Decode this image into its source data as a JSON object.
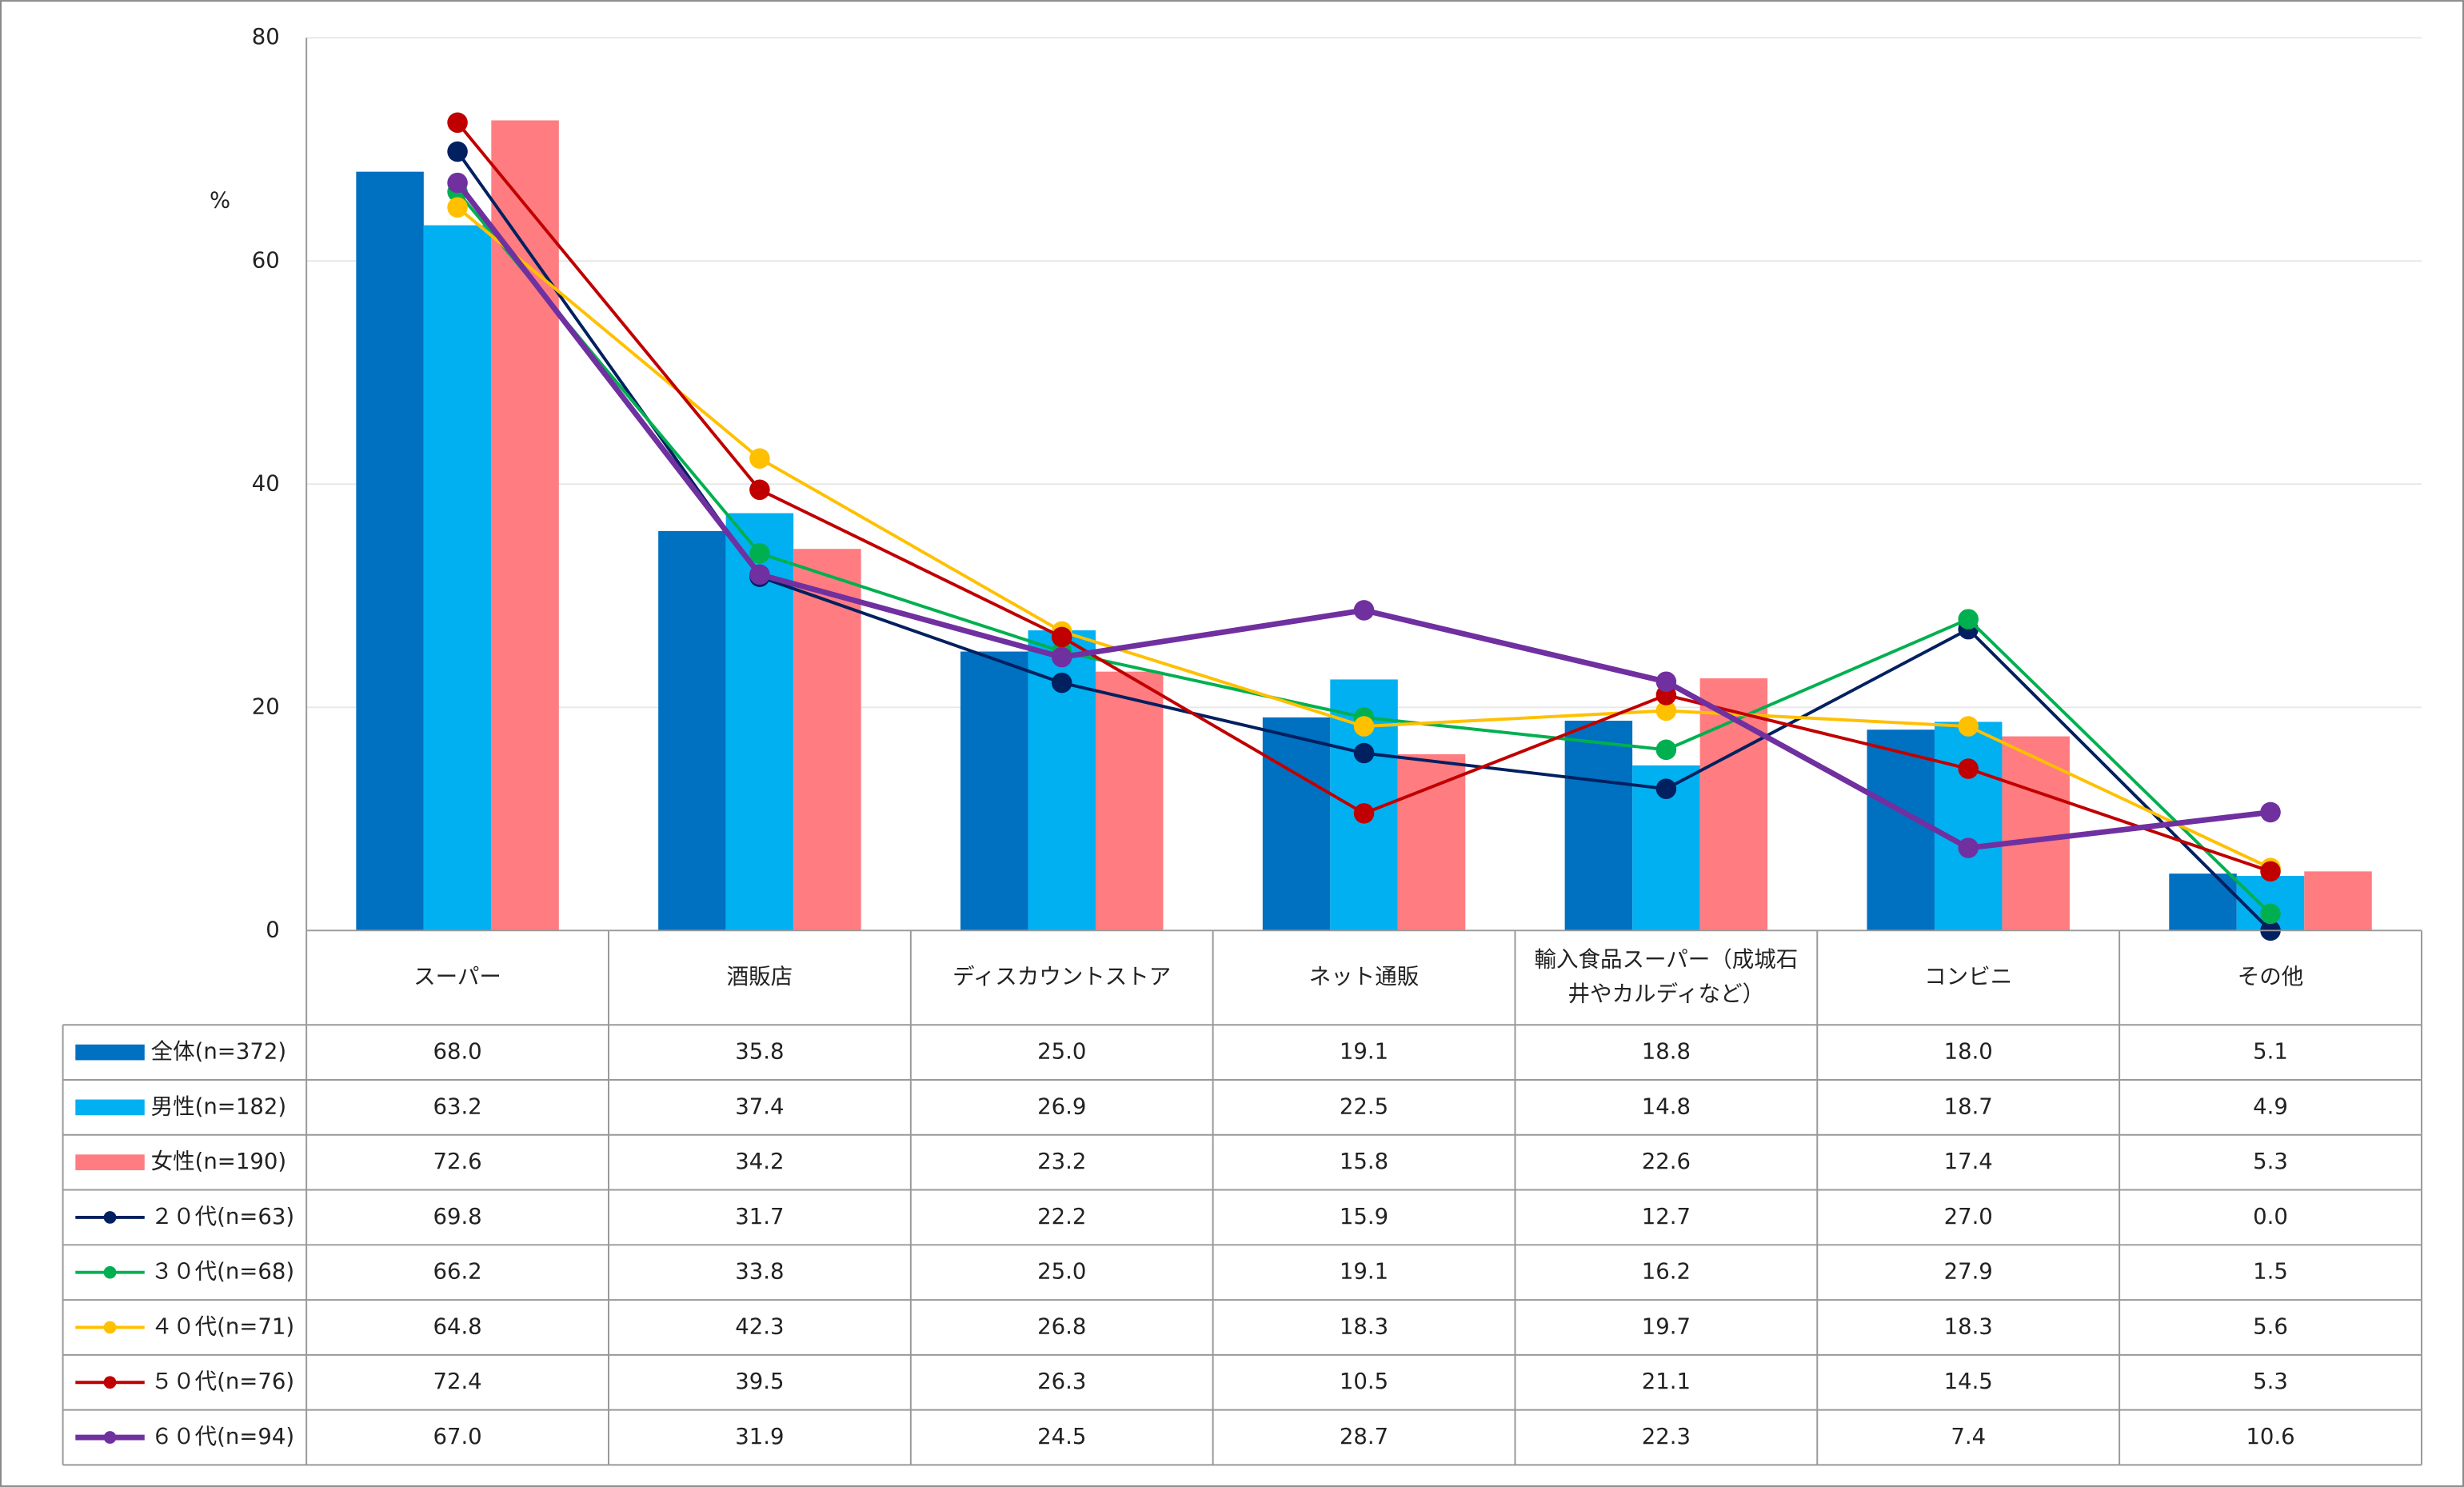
{
  "chart_data": {
    "type": "bar_line",
    "y_label": "%",
    "ylim": [
      0,
      80
    ],
    "yticks": [
      0,
      20,
      40,
      60,
      80
    ],
    "grid": true,
    "categories": [
      "スーパー",
      "酒販店",
      "ディスカウントストア",
      "ネット通販",
      "輸入食品スーパー（成城石井やカルディなど）",
      "コンビニ",
      "その他"
    ],
    "series": [
      {
        "name": "全体(n=372)",
        "type": "bar",
        "color": "#0070c0",
        "values": [
          68.0,
          35.8,
          25.0,
          19.1,
          18.8,
          18.0,
          5.1
        ],
        "value_labels": [
          "68.0",
          "35.8",
          "25.0",
          "19.1",
          "18.8",
          "18.0",
          "5.1"
        ]
      },
      {
        "name": "男性(n=182)",
        "type": "bar",
        "color": "#00b0f0",
        "values": [
          63.2,
          37.4,
          26.9,
          22.5,
          14.8,
          18.7,
          4.9
        ],
        "value_labels": [
          "63.2",
          "37.4",
          "26.9",
          "22.5",
          "14.8",
          "18.7",
          "4.9"
        ]
      },
      {
        "name": "女性(n=190)",
        "type": "bar",
        "color": "#ff7c80",
        "values": [
          72.6,
          34.2,
          23.2,
          15.8,
          22.6,
          17.4,
          5.3
        ],
        "value_labels": [
          "72.6",
          "34.2",
          "23.2",
          "15.8",
          "22.6",
          "17.4",
          "5.3"
        ]
      },
      {
        "name": "２０代(n=63)",
        "type": "line",
        "color": "#002060",
        "values": [
          69.8,
          31.7,
          22.2,
          15.9,
          12.7,
          27.0,
          0.0
        ],
        "value_labels": [
          "69.8",
          "31.7",
          "22.2",
          "15.9",
          "12.7",
          "27.0",
          "0.0"
        ]
      },
      {
        "name": "３０代(n=68)",
        "type": "line",
        "color": "#00b050",
        "values": [
          66.2,
          33.8,
          25.0,
          19.1,
          16.2,
          27.9,
          1.5
        ],
        "value_labels": [
          "66.2",
          "33.8",
          "25.0",
          "19.1",
          "16.2",
          "27.9",
          "1.5"
        ]
      },
      {
        "name": "４０代(n=71)",
        "type": "line",
        "color": "#ffc000",
        "values": [
          64.8,
          42.3,
          26.8,
          18.3,
          19.7,
          18.3,
          5.6
        ],
        "value_labels": [
          "64.8",
          "42.3",
          "26.8",
          "18.3",
          "19.7",
          "18.3",
          "5.6"
        ]
      },
      {
        "name": "５０代(n=76)",
        "type": "line",
        "color": "#c00000",
        "values": [
          72.4,
          39.5,
          26.3,
          10.5,
          21.1,
          14.5,
          5.3
        ],
        "value_labels": [
          "72.4",
          "39.5",
          "26.3",
          "10.5",
          "21.1",
          "14.5",
          "5.3"
        ]
      },
      {
        "name": "６０代(n=94)",
        "type": "line",
        "color": "#7030a0",
        "width": 3.5,
        "values": [
          67.0,
          31.9,
          24.5,
          28.7,
          22.3,
          7.4,
          10.6
        ],
        "value_labels": [
          "67.0",
          "31.9",
          "24.5",
          "28.7",
          "22.3",
          "7.4",
          "10.6"
        ]
      }
    ]
  }
}
